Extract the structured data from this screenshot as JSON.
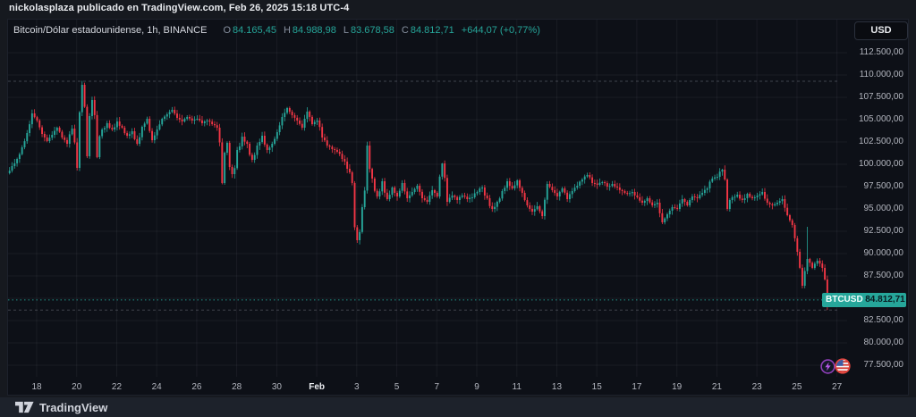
{
  "attribution": "nickolasplaza publicado en TradingView.com, Feb 26, 2025 15:18 UTC-4",
  "header": {
    "symbol_info": "Bitcoin/Dólar estadounidense, 1h, BINANCE",
    "ohlc": [
      {
        "k": "O",
        "v": "84.165,45"
      },
      {
        "k": "H",
        "v": "84.988,98"
      },
      {
        "k": "L",
        "v": "83.678,58"
      },
      {
        "k": "C",
        "v": "84.812,71"
      }
    ],
    "change": "+644,07 (+0,77%)"
  },
  "currency_button": "USD",
  "price_label": {
    "symbol_badge": "BTCUSD",
    "price": "84.812,71"
  },
  "footer": {
    "brand": "TradingView"
  },
  "price_axis": {
    "labels": [
      {
        "label": "112.500,00",
        "value": 112500
      },
      {
        "label": "110.000,00",
        "value": 110000
      },
      {
        "label": "107.500,00",
        "value": 107500
      },
      {
        "label": "105.000,00",
        "value": 105000
      },
      {
        "label": "102.500,00",
        "value": 102500
      },
      {
        "label": "100.000,00",
        "value": 100000
      },
      {
        "label": "97.500,00",
        "value": 97500
      },
      {
        "label": "95.000,00",
        "value": 95000
      },
      {
        "label": "92.500,00",
        "value": 92500
      },
      {
        "label": "90.000,00",
        "value": 90000
      },
      {
        "label": "87.500,00",
        "value": 87500
      },
      {
        "label": "82.500,00",
        "value": 82500
      },
      {
        "label": "80.000,00",
        "value": 80000
      },
      {
        "label": "77.500,00",
        "value": 77500
      }
    ]
  },
  "time_axis": {
    "ticks": [
      {
        "label": "18"
      },
      {
        "label": "20"
      },
      {
        "label": "22"
      },
      {
        "label": "24"
      },
      {
        "label": "26"
      },
      {
        "label": "28"
      },
      {
        "label": "30"
      },
      {
        "label": "Feb",
        "emphasis": true
      },
      {
        "label": "3"
      },
      {
        "label": "5"
      },
      {
        "label": "7"
      },
      {
        "label": "9"
      },
      {
        "label": "11"
      },
      {
        "label": "13"
      },
      {
        "label": "15"
      },
      {
        "label": "17"
      },
      {
        "label": "19"
      },
      {
        "label": "21"
      },
      {
        "label": "23"
      },
      {
        "label": "25"
      },
      {
        "label": "27"
      }
    ]
  },
  "colors": {
    "up": "#26a69a",
    "down": "#f23645",
    "background": "#0d1017",
    "frame": "#16191f",
    "grid": "rgba(240,243,250,0.055)",
    "axis_text": "#b2b5be",
    "price_label_bg": "#26a69a"
  },
  "chart_data": {
    "type": "candlestick",
    "symbol": "BTCUSD",
    "exchange": "BINANCE",
    "interval": "1h",
    "title": "Bitcoin/Dólar estadounidense",
    "x_range": "2025-01-16 08:00 to 2025-02-26 14:00",
    "point_interval_hours": 6,
    "ylim": [
      76500,
      113500
    ],
    "y_gridline_step": 2500,
    "y_gridlines": [
      77500,
      80000,
      82500,
      85000,
      87500,
      90000,
      92500,
      95000,
      97500,
      100000,
      102500,
      105000,
      107500,
      110000,
      112500
    ],
    "price_lines": {
      "high": 109300,
      "low": 83678.58,
      "current": 84812.71
    },
    "last_bar": {
      "open": 84165.45,
      "high": 84988.98,
      "low": 83678.58,
      "close": 84812.71,
      "change": 644.07,
      "change_pct": 0.77
    },
    "prices": [
      99400,
      99000,
      99800,
      100600,
      101900,
      103500,
      105700,
      104900,
      103400,
      102600,
      103300,
      104100,
      103000,
      102300,
      104000,
      {
        "p": 99600,
        "lo": 99300
      },
      {
        "p": 108900,
        "hi": 109350
      },
      100900,
      107200,
      100800,
      103900,
      104600,
      103900,
      104800,
      104100,
      103200,
      103700,
      102300,
      104200,
      105100,
      102700,
      103900,
      105100,
      105600,
      106100,
      105200,
      104800,
      105300,
      104900,
      105100,
      104600,
      104900,
      104500,
      104100,
      {
        "p": 97900,
        "lo": 97750
      },
      102400,
      98900,
      101600,
      103100,
      102300,
      100500,
      102100,
      103200,
      101600,
      102300,
      103600,
      105300,
      106300,
      105500,
      104900,
      104100,
      105900,
      104500,
      104900,
      103000,
      102100,
      101700,
      101400,
      100600,
      99500,
      97900,
      {
        "p": 91500,
        "lo": 91200
      },
      95200,
      102100,
      98400,
      96400,
      98100,
      96100,
      97400,
      96400,
      97900,
      96200,
      96900,
      97600,
      96200,
      95800,
      97100,
      96400,
      {
        "p": 100100,
        "hi": 100150
      },
      95800,
      96500,
      96000,
      96500,
      96100,
      96300,
      96900,
      97400,
      96200,
      95000,
      95800,
      97000,
      98100,
      97300,
      98200,
      96800,
      95400,
      94700,
      95300,
      94200,
      97800,
      97100,
      96400,
      97300,
      96100,
      97000,
      97600,
      98300,
      98800,
      97900,
      97700,
      98000,
      97500,
      97800,
      97400,
      97000,
      96700,
      96900,
      96300,
      95700,
      96200,
      95400,
      95700,
      {
        "p": 93500,
        "lo": 93300
      },
      94400,
      95200,
      95000,
      96100,
      95400,
      96400,
      96200,
      96800,
      97300,
      98400,
      98600,
      {
        "p": 99400,
        "hi": 99500
      },
      95000,
      96300,
      96600,
      96000,
      96700,
      96200,
      96500,
      96900,
      95700,
      95400,
      95700,
      96100,
      94300,
      93200,
      90200,
      {
        "p": 86400,
        "lo": 86100
      },
      {
        "p": 89400,
        "hi": 93000
      },
      88400,
      89200,
      88400,
      {
        "p": 84812.71,
        "lo": 83678.58
      }
    ]
  }
}
